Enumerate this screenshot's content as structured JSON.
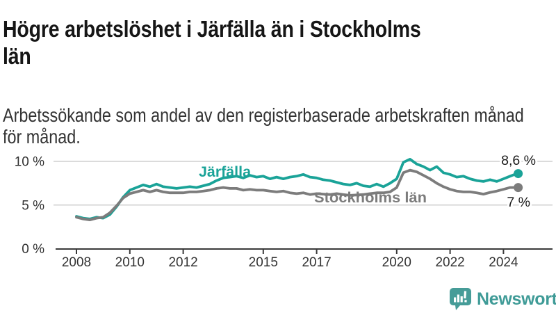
{
  "header": {
    "title_lines": [
      "Högre arbetslöshet i Järfälla än i Stockholms",
      "län"
    ],
    "subtitle_lines": [
      "Arbetssökande som andel av den registerbaserade arbetskraften månad",
      "för månad."
    ]
  },
  "chart_data": {
    "type": "line",
    "unit": "%",
    "grid": "horizontal",
    "legend_position": "inline-labels",
    "x_start_year": 2008,
    "points_per_year": 4,
    "x_end_year": 2024.5,
    "x_tick_years": [
      2008,
      2010,
      2012,
      2015,
      2017,
      2020,
      2022,
      2024
    ],
    "y_ticks": [
      {
        "value": 0,
        "label": "0 %"
      },
      {
        "value": 5,
        "label": "5 %"
      },
      {
        "value": 10,
        "label": "10 %"
      }
    ],
    "ylim": [
      0,
      11
    ],
    "axis_color": "#3a3a3a",
    "grid_color": "#cfcfcf",
    "tick_label_color": "#333333",
    "end_label_color": "#1a1a1a",
    "series": [
      {
        "id": "jarfalla",
        "name": "Järfälla",
        "color": "#1aa398",
        "end_label": "8,6 %",
        "end_value": 8.6,
        "values": [
          3.7,
          3.5,
          3.4,
          3.6,
          3.5,
          3.9,
          4.8,
          5.9,
          6.7,
          7.0,
          7.3,
          7.1,
          7.4,
          7.1,
          7.0,
          6.9,
          7.0,
          7.1,
          7.0,
          7.2,
          7.4,
          7.8,
          8.1,
          8.2,
          8.3,
          8.1,
          8.4,
          8.2,
          8.3,
          8.0,
          8.2,
          8.0,
          8.2,
          8.3,
          8.5,
          8.2,
          8.1,
          7.9,
          7.8,
          7.6,
          7.4,
          7.3,
          7.5,
          7.2,
          7.1,
          7.4,
          7.1,
          7.5,
          8.0,
          9.9,
          10.25,
          9.7,
          9.4,
          9.0,
          9.4,
          8.7,
          8.5,
          8.2,
          8.3,
          8.0,
          7.8,
          7.7,
          7.9,
          7.7,
          8.0,
          8.3,
          8.6
        ]
      },
      {
        "id": "stockholms-lan",
        "name": "Stockholms län",
        "color": "#7c7c7c",
        "end_label": "7 %",
        "end_value": 7.0,
        "values": [
          3.6,
          3.4,
          3.3,
          3.5,
          3.6,
          4.1,
          4.9,
          5.8,
          6.3,
          6.5,
          6.7,
          6.5,
          6.7,
          6.5,
          6.4,
          6.4,
          6.4,
          6.5,
          6.5,
          6.6,
          6.7,
          6.9,
          7.0,
          6.9,
          6.9,
          6.7,
          6.8,
          6.7,
          6.7,
          6.6,
          6.5,
          6.6,
          6.4,
          6.3,
          6.4,
          6.2,
          6.3,
          6.25,
          6.2,
          6.3,
          6.2,
          6.1,
          6.15,
          6.2,
          6.3,
          6.4,
          6.4,
          6.5,
          7.0,
          8.7,
          9.0,
          8.8,
          8.4,
          8.0,
          7.5,
          7.1,
          6.8,
          6.6,
          6.5,
          6.5,
          6.4,
          6.25,
          6.45,
          6.6,
          6.8,
          7.0,
          7.0
        ]
      }
    ]
  },
  "footer": {
    "brand": "Newsworthy",
    "brand_color": "#3f9b97"
  }
}
